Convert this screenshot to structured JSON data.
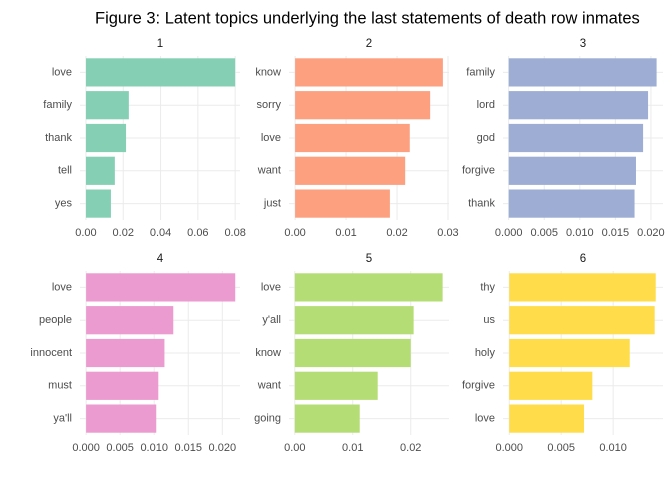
{
  "title": "Figure 3: Latent topics underlying the last statements of death row inmates",
  "chart_data": [
    {
      "type": "bar",
      "title": "1",
      "orientation": "horizontal",
      "color": "#85d0b5",
      "categories": [
        "love",
        "family",
        "thank",
        "tell",
        "yes"
      ],
      "values": [
        0.08,
        0.023,
        0.0215,
        0.0155,
        0.0134
      ],
      "xlim": [
        -0.0032,
        0.0826
      ],
      "xticks": [
        {
          "value": 0,
          "label": "0.00"
        },
        {
          "value": 0.02,
          "label": "0.02"
        },
        {
          "value": 0.04,
          "label": "0.04"
        },
        {
          "value": 0.06,
          "label": "0.06"
        },
        {
          "value": 0.08,
          "label": "0.08"
        }
      ],
      "grid": true
    },
    {
      "type": "bar",
      "title": "2",
      "orientation": "horizontal",
      "color": "#fca07f",
      "categories": [
        "know",
        "sorry",
        "love",
        "want",
        "just"
      ],
      "values": [
        0.029,
        0.0265,
        0.0225,
        0.0216,
        0.0186
      ],
      "xlim": [
        -0.0012,
        0.0302
      ],
      "xticks": [
        {
          "value": 0,
          "label": "0.00"
        },
        0.01,
        0.02,
        0.03
      ],
      "grid": true
    },
    {
      "type": "bar",
      "title": "3",
      "orientation": "horizontal",
      "color": "#9dadd4",
      "categories": [
        "family",
        "lord",
        "god",
        "forgive",
        "thank"
      ],
      "values": [
        0.0208,
        0.0196,
        0.0189,
        0.0179,
        0.0177
      ],
      "xlim": [
        -0.0008,
        0.0217
      ],
      "xticks": [
        {
          "value": 0,
          "label": "0.000"
        },
        0.005,
        {
          "value": 0.01,
          "label": "0.010"
        },
        0.015,
        {
          "value": 0.02,
          "label": "0.020"
        }
      ],
      "grid": true
    },
    {
      "type": "bar",
      "title": "4",
      "orientation": "horizontal",
      "color": "#eb9bcf",
      "categories": [
        "love",
        "people",
        "innocent",
        "must",
        "ya'll"
      ],
      "values": [
        0.0219,
        0.0128,
        0.0115,
        0.0106,
        0.0103
      ],
      "xlim": [
        -0.0009,
        0.0226
      ],
      "xticks": [
        {
          "value": 0,
          "label": "0.000"
        },
        0.005,
        {
          "value": 0.01,
          "label": "0.010"
        },
        0.015,
        {
          "value": 0.02,
          "label": "0.020"
        }
      ],
      "grid": true
    },
    {
      "type": "bar",
      "title": "5",
      "orientation": "horizontal",
      "color": "#b5dd75",
      "categories": [
        "love",
        "y'all",
        "know",
        "want",
        "going"
      ],
      "values": [
        0.0255,
        0.0205,
        0.02,
        0.0143,
        0.0112
      ],
      "xlim": [
        -0.001,
        0.0266
      ],
      "xticks": [
        {
          "value": 0,
          "label": "0.00"
        },
        0.01,
        0.02
      ],
      "grid": true
    },
    {
      "type": "bar",
      "title": "6",
      "orientation": "horizontal",
      "color": "#ffdd4a",
      "categories": [
        "thy",
        "us",
        "holy",
        "forgive",
        "love"
      ],
      "values": [
        0.0141,
        0.014,
        0.0116,
        0.008,
        0.0072
      ],
      "xlim": [
        -0.0006,
        0.0148
      ],
      "xticks": [
        {
          "value": 0,
          "label": "0.000"
        },
        0.005,
        {
          "value": 0.01,
          "label": "0.010"
        }
      ],
      "grid": true
    }
  ]
}
